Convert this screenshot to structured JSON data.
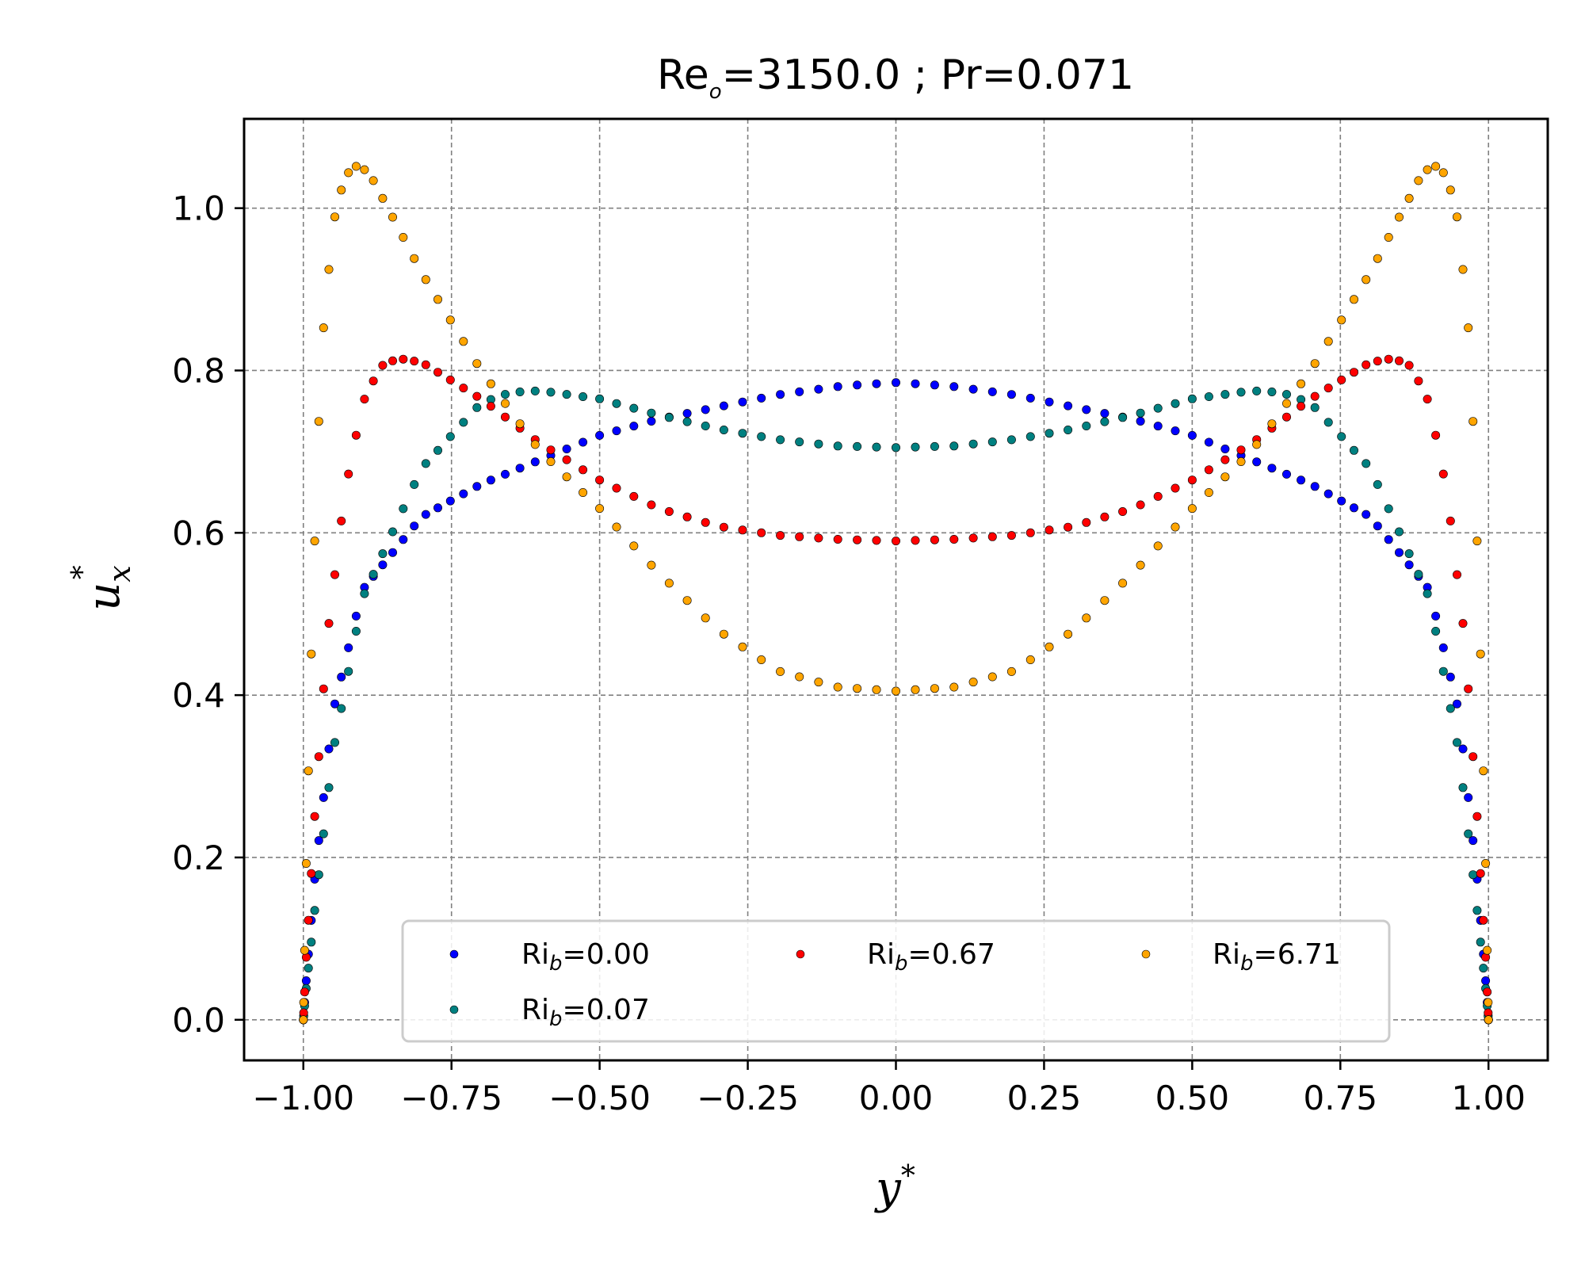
{
  "chart_data": {
    "type": "scatter",
    "title": {
      "prefix": "Re",
      "sub": "o",
      "suffix": "=3150.0 ; Pr=0.071"
    },
    "xlabel": {
      "base": "y",
      "sup": "*"
    },
    "ylabel": {
      "base": "u",
      "sub": "x",
      "sup": "*"
    },
    "xlim": [
      -1.1,
      1.1
    ],
    "ylim": [
      -0.05,
      1.11
    ],
    "grid": true,
    "x_ticks": [
      -1.0,
      -0.75,
      -0.5,
      -0.25,
      0.0,
      0.25,
      0.5,
      0.75,
      1.0
    ],
    "x_tick_labels": [
      "−1.00",
      "−0.75",
      "−0.50",
      "−0.25",
      "0.00",
      "0.25",
      "0.50",
      "0.75",
      "1.00"
    ],
    "y_ticks": [
      0.0,
      0.2,
      0.4,
      0.6,
      0.8,
      1.0
    ],
    "y_tick_labels": [
      "0.0",
      "0.2",
      "0.4",
      "0.6",
      "0.8",
      "1.0"
    ],
    "legend": {
      "placement": "lower center",
      "ncol": 3
    },
    "series": [
      {
        "name": "Ri_b=0.00",
        "label": {
          "prefix": "Ri",
          "sub": "b",
          "suffix": "=0.00"
        },
        "color": "#0000ff",
        "profile_x": [
          0.0,
          0.005,
          0.02,
          0.05,
          0.1,
          0.2,
          0.3,
          0.4,
          0.5,
          0.6,
          0.7,
          0.8,
          0.9,
          0.95,
          1.0
        ],
        "profile_y": [
          0.0,
          0.05,
          0.18,
          0.38,
          0.53,
          0.62,
          0.66,
          0.69,
          0.72,
          0.74,
          0.755,
          0.77,
          0.78,
          0.783,
          0.785
        ],
        "n_points": 96
      },
      {
        "name": "Ri_b=0.07",
        "label": {
          "prefix": "Ri",
          "sub": "b",
          "suffix": "=0.07"
        },
        "color": "#008080",
        "profile_x": [
          0.0,
          0.005,
          0.02,
          0.05,
          0.1,
          0.2,
          0.3,
          0.35,
          0.4,
          0.5,
          0.6,
          0.7,
          0.8,
          0.9,
          1.0
        ],
        "profile_y": [
          0.0,
          0.04,
          0.14,
          0.33,
          0.52,
          0.68,
          0.76,
          0.773,
          0.775,
          0.765,
          0.745,
          0.728,
          0.715,
          0.707,
          0.705
        ],
        "n_points": 96
      },
      {
        "name": "Ri_b=0.67",
        "label": {
          "prefix": "Ri",
          "sub": "b",
          "suffix": "=0.67"
        },
        "color": "#ff0000",
        "profile_x": [
          0.0,
          0.005,
          0.02,
          0.04,
          0.07,
          0.1,
          0.13,
          0.16,
          0.2,
          0.3,
          0.4,
          0.5,
          0.6,
          0.7,
          0.8,
          0.9,
          1.0
        ],
        "profile_y": [
          0.0,
          0.08,
          0.26,
          0.47,
          0.65,
          0.76,
          0.805,
          0.815,
          0.81,
          0.765,
          0.71,
          0.665,
          0.63,
          0.608,
          0.597,
          0.592,
          0.59
        ],
        "n_points": 96
      },
      {
        "name": "Ri_b=6.71",
        "label": {
          "prefix": "Ri",
          "sub": "b",
          "suffix": "=6.71"
        },
        "color": "#ffa500",
        "profile_x": [
          0.0,
          0.005,
          0.015,
          0.03,
          0.05,
          0.07,
          0.09,
          0.11,
          0.15,
          0.2,
          0.3,
          0.4,
          0.5,
          0.6,
          0.7,
          0.8,
          0.9,
          1.0
        ],
        "profile_y": [
          0.0,
          0.2,
          0.5,
          0.82,
          0.98,
          1.04,
          1.052,
          1.045,
          0.99,
          0.92,
          0.8,
          0.7,
          0.63,
          0.55,
          0.48,
          0.43,
          0.41,
          0.405
        ],
        "n_points": 96
      }
    ]
  }
}
